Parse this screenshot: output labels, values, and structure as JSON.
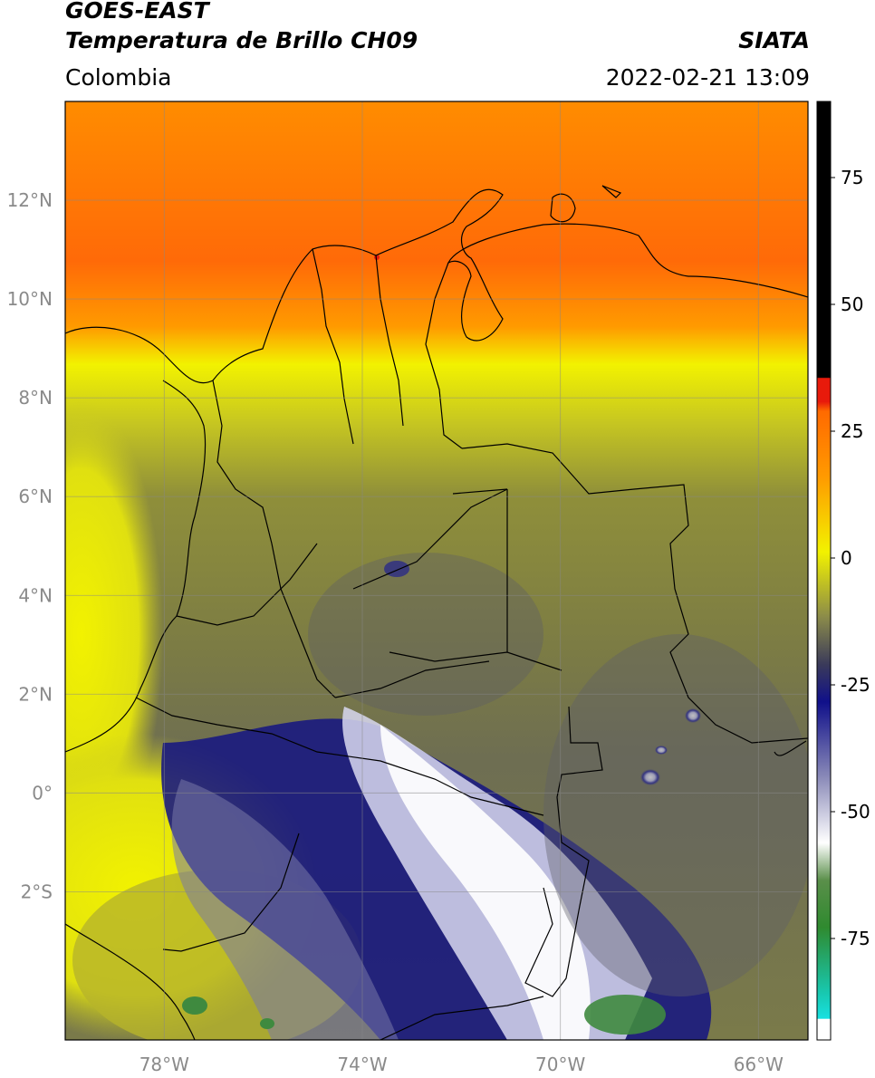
{
  "header": {
    "satellite": "GOES-EAST",
    "product": "Temperatura de Brillo CH09",
    "region": "Colombia",
    "brand": "SIATA",
    "timestamp": "2022-02-21 13:09"
  },
  "map": {
    "lon_range": [
      -80,
      -65
    ],
    "lat_range": [
      -5,
      14
    ],
    "lon_ticks": [
      {
        "value": -78,
        "label": "78°W"
      },
      {
        "value": -74,
        "label": "74°W"
      },
      {
        "value": -70,
        "label": "70°W"
      },
      {
        "value": -66,
        "label": "66°W"
      }
    ],
    "lat_ticks": [
      {
        "value": 12,
        "label": "12°N"
      },
      {
        "value": 10,
        "label": "10°N"
      },
      {
        "value": 8,
        "label": "8°N"
      },
      {
        "value": 6,
        "label": "6°N"
      },
      {
        "value": 4,
        "label": "4°N"
      },
      {
        "value": 2,
        "label": "2°N"
      },
      {
        "value": 0,
        "label": "0°"
      },
      {
        "value": -2,
        "label": "2°S"
      }
    ],
    "gridlines": true
  },
  "colorbar": {
    "ticks": [
      {
        "value": 75,
        "label": "75"
      },
      {
        "value": 50,
        "label": "50"
      },
      {
        "value": 25,
        "label": "25"
      },
      {
        "value": 0,
        "label": "0"
      },
      {
        "value": -25,
        "label": "-25"
      },
      {
        "value": -50,
        "label": "-50"
      },
      {
        "value": -75,
        "label": "-75"
      }
    ],
    "colors": {
      "black": "#000000",
      "red": "#e81a0b",
      "orange": "#ff8c00",
      "yellow": "#f2f200",
      "olive": "#9c9c36",
      "gray": "#55556a",
      "navy": "#10108a",
      "white": "#ffffff",
      "green": "#2f8a2f",
      "cyan": "#18d9d9"
    }
  }
}
